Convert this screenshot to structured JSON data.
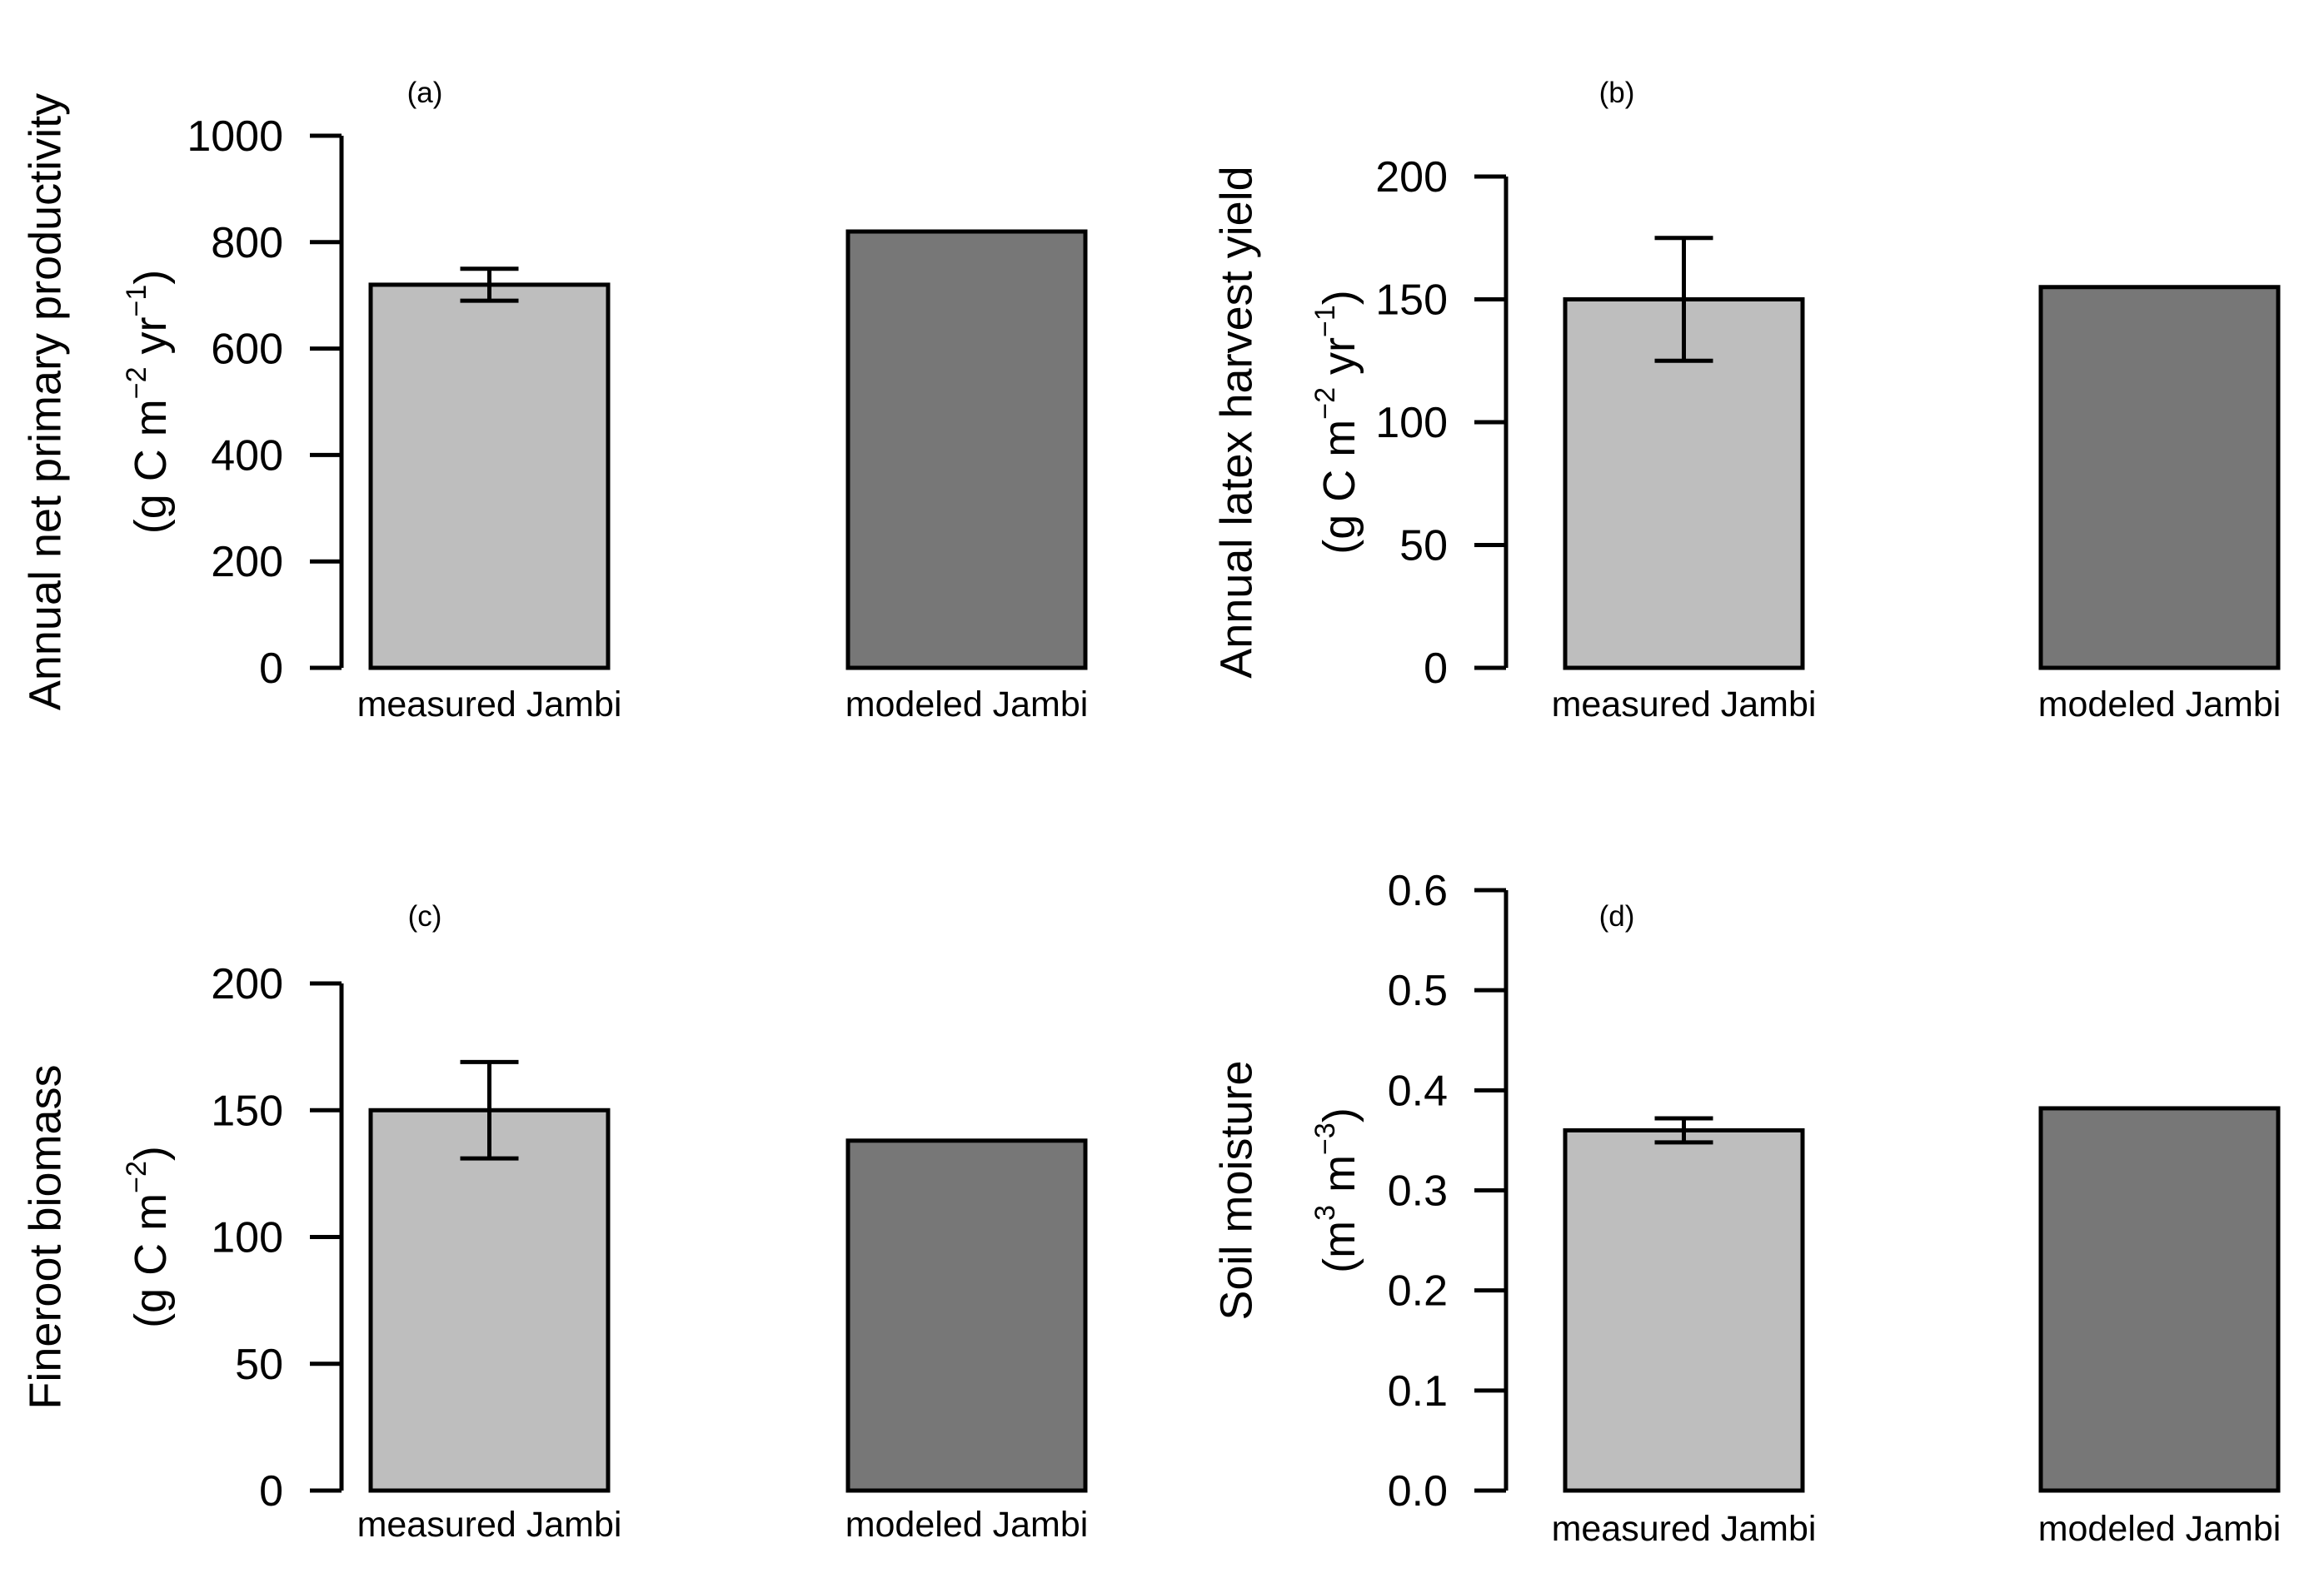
{
  "chart_data": [
    {
      "type": "bar",
      "panel_label": "(a)",
      "categories": [
        "measured Jambi",
        "modeled Jambi"
      ],
      "values": [
        720,
        820
      ],
      "errors": [
        30,
        null
      ],
      "ylabel_line1": "Annual net primary productivity",
      "ylabel_units": "(g C m^-2 yr^-1)",
      "ylim": [
        0,
        1000
      ],
      "ticks": [
        0,
        200,
        400,
        600,
        800,
        1000
      ],
      "tick_decimals": 0,
      "colors": [
        "#bebebe",
        "#777777"
      ]
    },
    {
      "type": "bar",
      "panel_label": "(b)",
      "categories": [
        "measured Jambi",
        "modeled Jambi"
      ],
      "values": [
        150,
        155
      ],
      "errors": [
        25,
        null
      ],
      "ylabel_line1": "Annual latex harvest yield",
      "ylabel_units": "(g C m^-2 yr^-1)",
      "ylim": [
        0,
        200
      ],
      "ticks": [
        0,
        50,
        100,
        150,
        200
      ],
      "tick_decimals": 0,
      "colors": [
        "#bebebe",
        "#777777"
      ]
    },
    {
      "type": "bar",
      "panel_label": "(c)",
      "categories": [
        "measured Jambi",
        "modeled Jambi"
      ],
      "values": [
        150,
        138
      ],
      "errors": [
        19,
        null
      ],
      "ylabel_line1": "Fineroot biomass",
      "ylabel_units": "(g C m^-2)",
      "ylim": [
        0,
        200
      ],
      "ticks": [
        0,
        50,
        100,
        150,
        200
      ],
      "tick_decimals": 0,
      "colors": [
        "#bebebe",
        "#777777"
      ]
    },
    {
      "type": "bar",
      "panel_label": "(d)",
      "categories": [
        "measured Jambi",
        "modeled Jambi"
      ],
      "values": [
        0.36,
        0.382
      ],
      "errors": [
        0.012,
        null
      ],
      "ylabel_line1": "Soil moisture",
      "ylabel_units": "(m^3 m^-3)",
      "ylim": [
        0,
        0.6
      ],
      "ticks": [
        0,
        0.1,
        0.2,
        0.3,
        0.4,
        0.5,
        0.6
      ],
      "tick_decimals": 1,
      "colors": [
        "#bebebe",
        "#777777"
      ]
    }
  ]
}
